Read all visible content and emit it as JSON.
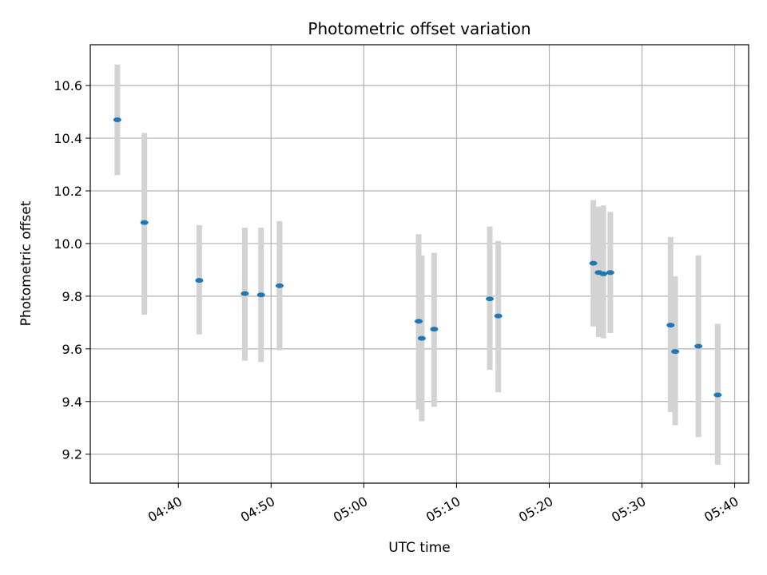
{
  "chart_data": {
    "type": "scatter",
    "title": "Photometric offset variation",
    "xlabel": "UTC time",
    "ylabel": "Photometric offset",
    "x_unit": "UTC time (HH:MM)",
    "xlim": [
      "04:30:30",
      "05:41:30"
    ],
    "ylim": [
      9.09,
      10.755
    ],
    "x_ticks": [
      "04:40",
      "04:50",
      "05:00",
      "05:10",
      "05:20",
      "05:30",
      "05:40"
    ],
    "y_ticks": [
      9.2,
      9.4,
      9.6,
      9.8,
      10.0,
      10.2,
      10.4,
      10.6
    ],
    "y_tick_labels": [
      "9.2",
      "9.4",
      "9.6",
      "9.8",
      "10.0",
      "10.2",
      "10.4",
      "10.6"
    ],
    "grid": true,
    "series": [
      {
        "marker_color": "#1f77b4",
        "errorbar_color": "#d3d3d3",
        "points": [
          {
            "x": "04:33:25",
            "y": 10.47,
            "ylow": 10.26,
            "yhigh": 10.68
          },
          {
            "x": "04:36:20",
            "y": 10.08,
            "ylow": 9.73,
            "yhigh": 10.42
          },
          {
            "x": "04:42:15",
            "y": 9.86,
            "ylow": 9.655,
            "yhigh": 10.07
          },
          {
            "x": "04:47:10",
            "y": 9.81,
            "ylow": 9.555,
            "yhigh": 10.06
          },
          {
            "x": "04:48:55",
            "y": 9.805,
            "ylow": 9.55,
            "yhigh": 10.06
          },
          {
            "x": "04:50:55",
            "y": 9.84,
            "ylow": 9.595,
            "yhigh": 10.085
          },
          {
            "x": "05:05:55",
            "y": 9.705,
            "ylow": 9.37,
            "yhigh": 10.035
          },
          {
            "x": "05:06:15",
            "y": 9.64,
            "ylow": 9.325,
            "yhigh": 9.955
          },
          {
            "x": "05:07:35",
            "y": 9.675,
            "ylow": 9.38,
            "yhigh": 9.965
          },
          {
            "x": "05:13:35",
            "y": 9.79,
            "ylow": 9.52,
            "yhigh": 10.065
          },
          {
            "x": "05:14:30",
            "y": 9.725,
            "ylow": 9.435,
            "yhigh": 10.01
          },
          {
            "x": "05:24:45",
            "y": 9.925,
            "ylow": 9.685,
            "yhigh": 10.165
          },
          {
            "x": "05:25:20",
            "y": 9.89,
            "ylow": 9.645,
            "yhigh": 10.14
          },
          {
            "x": "05:25:50",
            "y": 9.885,
            "ylow": 9.64,
            "yhigh": 10.145
          },
          {
            "x": "05:26:35",
            "y": 9.89,
            "ylow": 9.66,
            "yhigh": 10.12
          },
          {
            "x": "05:33:05",
            "y": 9.69,
            "ylow": 9.36,
            "yhigh": 10.025
          },
          {
            "x": "05:33:35",
            "y": 9.59,
            "ylow": 9.31,
            "yhigh": 9.875
          },
          {
            "x": "05:36:05",
            "y": 9.61,
            "ylow": 9.265,
            "yhigh": 9.955
          },
          {
            "x": "05:38:10",
            "y": 9.425,
            "ylow": 9.16,
            "yhigh": 9.695
          }
        ]
      }
    ]
  }
}
